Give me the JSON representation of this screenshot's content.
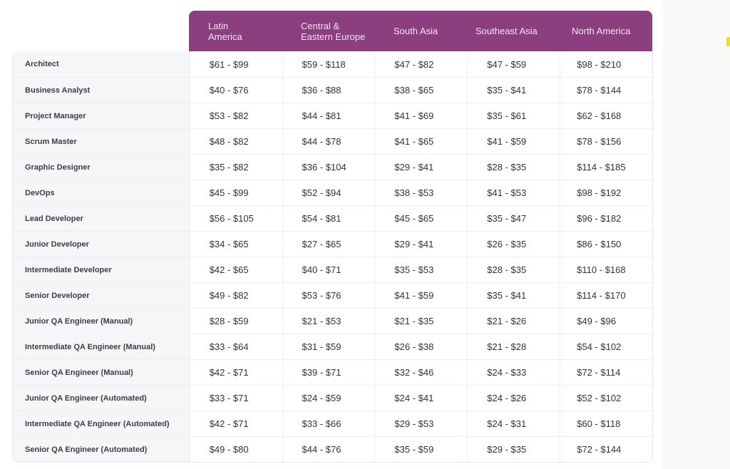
{
  "headers": [
    "Latin America",
    "Central & Eastern Europe",
    "South Asia",
    "Southeast Asia",
    "North America"
  ],
  "header_color": "#8b3f7e",
  "rows": [
    {
      "role": "Architect",
      "rates": [
        "$61 - $99",
        "$59 - $118",
        "$47 - $82",
        "$47 - $59",
        "$98 - $210"
      ]
    },
    {
      "role": "Business Analyst",
      "rates": [
        "$40 - $76",
        "$36 - $88",
        "$38 - $65",
        "$35 - $41",
        "$78 - $144"
      ]
    },
    {
      "role": "Project Manager",
      "rates": [
        "$53 - $82",
        "$44 - $81",
        "$41 - $69",
        "$35 - $61",
        "$62 - $168"
      ]
    },
    {
      "role": "Scrum Master",
      "rates": [
        "$48 - $82",
        "$44 - $78",
        "$41 - $65",
        "$41 - $59",
        "$78 - $156"
      ]
    },
    {
      "role": "Graphic Designer",
      "rates": [
        "$35 - $82",
        "$36 - $104",
        "$29 - $41",
        "$28 - $35",
        "$114 - $185"
      ]
    },
    {
      "role": "DevOps",
      "rates": [
        "$45 - $99",
        "$52 - $94",
        "$38 - $53",
        "$41 - $53",
        "$98 - $192"
      ]
    },
    {
      "role": "Lead Developer",
      "rates": [
        "$56 - $105",
        "$54 - $81",
        "$45 - $65",
        "$35 - $47",
        "$96 - $182"
      ]
    },
    {
      "role": "Junior Developer",
      "rates": [
        "$34 - $65",
        "$27 - $65",
        "$29 - $41",
        "$26 - $35",
        "$86 - $150"
      ]
    },
    {
      "role": "Intermediate Developer",
      "rates": [
        "$42 - $65",
        "$40 - $71",
        "$35 - $53",
        "$28 - $35",
        "$110 - $168"
      ]
    },
    {
      "role": "Senior Developer",
      "rates": [
        "$49 - $82",
        "$53 - $76",
        "$41 - $59",
        "$35 - $41",
        "$114 - $170"
      ]
    },
    {
      "role": "Junior QA Engineer (Manual)",
      "rates": [
        "$28 - $59",
        "$21 - $53",
        "$21 - $35",
        "$21 - $26",
        "$49 - $96"
      ]
    },
    {
      "role": "Intermediate QA Engineer (Manual)",
      "rates": [
        "$33 - $64",
        "$31 - $59",
        "$26 - $38",
        "$21 - $28",
        "$54 - $102"
      ]
    },
    {
      "role": "Senior QA Engineer (Manual)",
      "rates": [
        "$42 - $71",
        "$39 - $71",
        "$32 - $46",
        "$24 - $33",
        "$72 - $114"
      ]
    },
    {
      "role": "Junior QA Engineer (Automated)",
      "rates": [
        "$33 - $71",
        "$24 - $59",
        "$24 - $41",
        "$24 - $26",
        "$52 - $102"
      ]
    },
    {
      "role": "Intermediate QA Engineer (Automated)",
      "rates": [
        "$42 - $71",
        "$33 - $66",
        "$29 - $53",
        "$24 - $31",
        "$60 - $118"
      ]
    },
    {
      "role": "Senior QA Engineer (Automated)",
      "rates": [
        "$49 - $80",
        "$44 - $76",
        "$35 - $59",
        "$29 - $35",
        "$72 - $144"
      ]
    }
  ]
}
